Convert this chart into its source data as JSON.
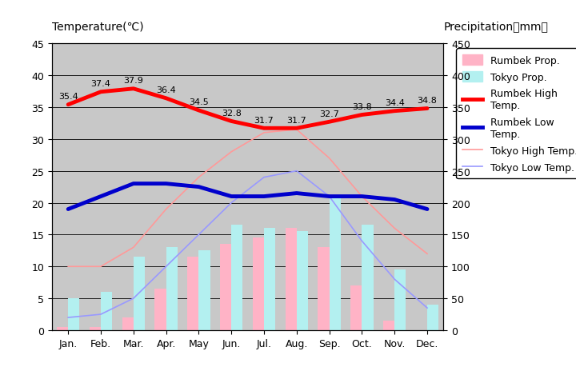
{
  "months": [
    "Jan.",
    "Feb.",
    "Mar.",
    "Apr.",
    "May",
    "Jun.",
    "Jul.",
    "Aug.",
    "Sep.",
    "Oct.",
    "Nov.",
    "Dec."
  ],
  "rumbek_high": [
    35.4,
    37.4,
    37.9,
    36.4,
    34.5,
    32.8,
    31.7,
    31.7,
    32.7,
    33.8,
    34.4,
    34.8
  ],
  "rumbek_low": [
    19.0,
    21.0,
    23.0,
    23.0,
    22.5,
    21.0,
    21.0,
    21.5,
    21.0,
    21.0,
    20.5,
    19.0
  ],
  "tokyo_high": [
    10.0,
    10.0,
    13.0,
    19.0,
    24.0,
    28.0,
    31.0,
    31.5,
    27.0,
    21.0,
    16.0,
    12.0
  ],
  "tokyo_low": [
    2.0,
    2.5,
    5.0,
    10.0,
    15.0,
    20.0,
    24.0,
    25.0,
    21.0,
    14.0,
    8.0,
    3.5
  ],
  "rumbek_precip": [
    0.5,
    0.5,
    2.0,
    6.5,
    11.5,
    13.5,
    14.5,
    16.0,
    13.0,
    7.0,
    1.5,
    0.0
  ],
  "tokyo_precip": [
    5.0,
    6.0,
    11.5,
    13.0,
    12.5,
    16.5,
    16.0,
    15.5,
    21.0,
    16.5,
    9.5,
    4.0
  ],
  "rumbek_high_labels": [
    "35.4",
    "37.4",
    "37.9",
    "36.4",
    "34.5",
    "32.8",
    "31.7",
    "31.7",
    "32.7",
    "33.8",
    "34.4",
    "34.8"
  ],
  "temp_ylim": [
    0,
    45
  ],
  "precip_ylim": [
    0,
    450
  ],
  "temp_yticks": [
    0,
    5,
    10,
    15,
    20,
    25,
    30,
    35,
    40,
    45
  ],
  "precip_yticks": [
    0,
    50,
    100,
    150,
    200,
    250,
    300,
    350,
    400,
    450
  ],
  "plot_bg_color": "#c8c8c8",
  "fig_bg": "#ffffff",
  "outer_bg": "#ffffff",
  "title_left": "Temperature(℃)",
  "title_right": "Precipitation（mm）",
  "rumbek_precip_color": "#ffb3c6",
  "tokyo_precip_color": "#b3f0f0",
  "rumbek_high_color": "#ff0000",
  "rumbek_low_color": "#0000cc",
  "tokyo_high_color": "#ff9999",
  "tokyo_low_color": "#9999ff",
  "bar_width": 0.35,
  "label_fontsize": 8,
  "tick_fontsize": 9,
  "legend_fontsize": 9
}
